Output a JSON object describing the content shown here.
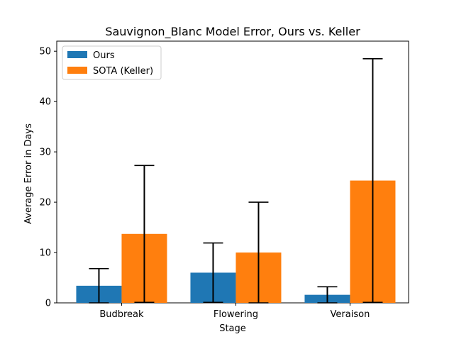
{
  "chart_data": {
    "type": "bar",
    "title": "Sauvignon_Blanc Model Error, Ours vs. Keller",
    "xlabel": "Stage",
    "ylabel": "Average Error in Days",
    "categories": [
      "Budbreak",
      "Flowering",
      "Veraison"
    ],
    "ylim": [
      0,
      52
    ],
    "yticks": [
      0,
      10,
      20,
      30,
      40,
      50
    ],
    "grid": false,
    "legend_position": "top-left",
    "series": [
      {
        "name": "Ours",
        "color": "#1f77b4",
        "values": [
          3.4,
          6.0,
          1.6
        ],
        "error": [
          3.4,
          5.9,
          1.6
        ]
      },
      {
        "name": "SOTA (Keller)",
        "color": "#ff7f0e",
        "values": [
          13.7,
          10.0,
          24.3
        ],
        "error": [
          13.6,
          10.0,
          24.2
        ]
      }
    ]
  }
}
